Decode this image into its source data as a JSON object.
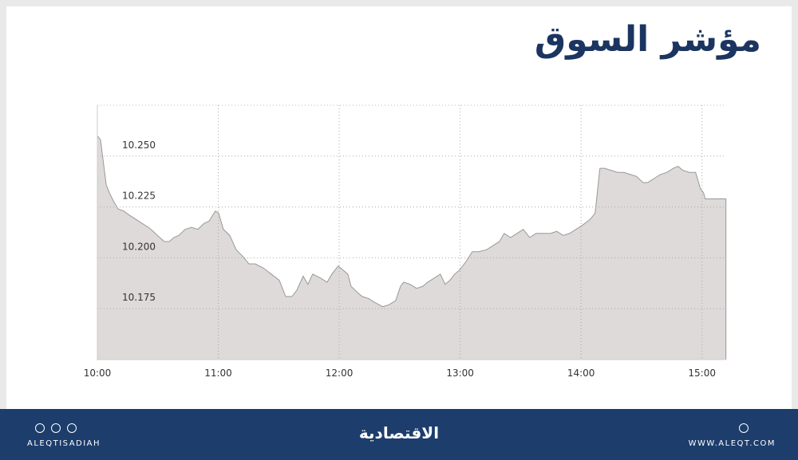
{
  "chart_data": {
    "type": "area",
    "title": "مؤشر السوق",
    "x": [
      10.0,
      10.026,
      10.073,
      10.099,
      10.132,
      10.172,
      10.218,
      10.264,
      10.317,
      10.369,
      10.422,
      10.462,
      10.515,
      10.554,
      10.594,
      10.633,
      10.673,
      10.726,
      10.778,
      10.831,
      10.884,
      10.923,
      10.976,
      11.003,
      11.042,
      11.095,
      11.148,
      11.214,
      11.253,
      11.306,
      11.372,
      11.438,
      11.504,
      11.557,
      11.609,
      11.649,
      11.702,
      11.741,
      11.781,
      11.847,
      11.9,
      11.939,
      11.992,
      12.032,
      12.071,
      12.098,
      12.15,
      12.19,
      12.243,
      12.296,
      12.361,
      12.414,
      12.467,
      12.507,
      12.533,
      12.586,
      12.639,
      12.691,
      12.731,
      12.784,
      12.836,
      12.876,
      12.916,
      12.955,
      12.995,
      13.047,
      13.1,
      13.153,
      13.219,
      13.272,
      13.325,
      13.364,
      13.417,
      13.47,
      13.522,
      13.575,
      13.628,
      13.681,
      13.747,
      13.799,
      13.852,
      13.905,
      13.958,
      14.011,
      14.077,
      14.116,
      14.156,
      14.195,
      14.248,
      14.301,
      14.354,
      14.406,
      14.459,
      14.512,
      14.551,
      14.604,
      14.657,
      14.71,
      14.763,
      14.802,
      14.842,
      14.894,
      14.947,
      14.987,
      15.013,
      15.026,
      15.198
    ],
    "values": [
      10.26,
      10.258,
      10.236,
      10.232,
      10.228,
      10.224,
      10.223,
      10.221,
      10.219,
      10.217,
      10.215,
      10.213,
      10.21,
      10.208,
      10.208,
      10.21,
      10.211,
      10.214,
      10.215,
      10.214,
      10.217,
      10.218,
      10.223,
      10.222,
      10.214,
      10.211,
      10.204,
      10.2,
      10.197,
      10.197,
      10.195,
      10.192,
      10.189,
      10.181,
      10.181,
      10.184,
      10.191,
      10.187,
      10.192,
      10.19,
      10.188,
      10.192,
      10.196,
      10.194,
      10.192,
      10.186,
      10.183,
      10.181,
      10.18,
      10.178,
      10.176,
      10.177,
      10.179,
      10.186,
      10.188,
      10.187,
      10.185,
      10.186,
      10.188,
      10.19,
      10.192,
      10.187,
      10.189,
      10.192,
      10.194,
      10.198,
      10.203,
      10.203,
      10.204,
      10.206,
      10.208,
      10.212,
      10.21,
      10.212,
      10.214,
      10.21,
      10.212,
      10.212,
      10.212,
      10.213,
      10.211,
      10.212,
      10.214,
      10.216,
      10.219,
      10.222,
      10.244,
      10.244,
      10.243,
      10.242,
      10.242,
      10.241,
      10.24,
      10.237,
      10.237,
      10.239,
      10.241,
      10.242,
      10.244,
      10.245,
      10.243,
      10.242,
      10.242,
      10.234,
      10.232,
      10.229,
      10.229
    ],
    "xlim": [
      10,
      15.2
    ],
    "xticks": [
      {
        "value": 10,
        "label": "10:00"
      },
      {
        "value": 11,
        "label": "11:00"
      },
      {
        "value": 12,
        "label": "12:00"
      },
      {
        "value": 13,
        "label": "13:00"
      },
      {
        "value": 14,
        "label": "14:00"
      },
      {
        "value": 15,
        "label": "15:00"
      }
    ],
    "ylim": [
      10.15,
      10.275
    ],
    "yticks": [
      {
        "value": 10.175,
        "label": "10.175"
      },
      {
        "value": 10.2,
        "label": "10.200"
      },
      {
        "value": 10.225,
        "label": "10.225"
      },
      {
        "value": 10.25,
        "label": "10.250"
      }
    ],
    "grid": true,
    "color": "#dddad9",
    "line_color": "#9a9898"
  },
  "footer": {
    "brand": "الاقتصادية",
    "handle": "ALEQTISADIAH",
    "site": "WWW.ALEQT.COM"
  }
}
